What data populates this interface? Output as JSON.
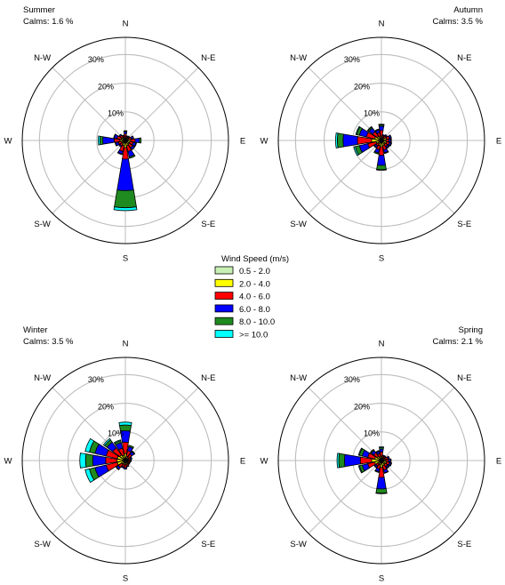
{
  "chart_data": {
    "type": "windrose",
    "legend": {
      "title": "Wind Speed (m/s)",
      "placement": "center",
      "items": [
        {
          "label": "0.5 - 2.0",
          "color": "#c8f0b4"
        },
        {
          "label": "2.0 - 4.0",
          "color": "#ffff00"
        },
        {
          "label": "4.0 - 6.0",
          "color": "#ff0000"
        },
        {
          "label": "6.0 - 8.0",
          "color": "#0000ff"
        },
        {
          "label": "8.0 - 10.0",
          "color": "#1f8a1f"
        },
        {
          "label": ">= 10.0",
          "color": "#00ffff"
        }
      ]
    },
    "directions": [
      "N",
      "NNE",
      "NE",
      "ENE",
      "E",
      "ESE",
      "SE",
      "SSE",
      "S",
      "SSW",
      "SW",
      "WSW",
      "W",
      "WNW",
      "NW",
      "NNW"
    ],
    "radial_ticks": [
      10,
      20,
      30
    ],
    "radial_tick_suffix": "%",
    "rmax": 36,
    "compass_labels": [
      "N",
      "N-E",
      "E",
      "S-E",
      "S",
      "S-W",
      "W",
      "N-W"
    ],
    "panels": [
      {
        "season": "Summer",
        "calms": "Calms: 1.6 %",
        "series": [
          {
            "name": "0.5 - 2.0",
            "values": [
              0.3,
              0.3,
              0.3,
              0.3,
              0.4,
              0.4,
              0.4,
              0.4,
              0.5,
              0.4,
              0.3,
              0.3,
              0.4,
              0.3,
              0.3,
              0.3
            ]
          },
          {
            "name": "2.0 - 4.0",
            "values": [
              1.0,
              0.6,
              0.8,
              0.9,
              1.5,
              1.2,
              1.2,
              1.5,
              2.0,
              1.5,
              1.0,
              1.0,
              1.5,
              1.2,
              1.0,
              0.8
            ]
          },
          {
            "name": "4.0 - 6.0",
            "values": [
              1.0,
              0.5,
              0.5,
              1.0,
              1.5,
              1.2,
              1.5,
              2.0,
              4.0,
              2.0,
              1.0,
              1.2,
              2.0,
              1.5,
              1.0,
              0.6
            ]
          },
          {
            "name": "6.0 - 8.0",
            "values": [
              0.8,
              0.3,
              0.3,
              0.7,
              1.5,
              1.0,
              0.8,
              2.0,
              11.0,
              1.0,
              0.5,
              1.0,
              4.0,
              1.0,
              0.4,
              0.3
            ]
          },
          {
            "name": "8.0 - 10.0",
            "values": [
              0.3,
              0.0,
              0.0,
              0.1,
              0.6,
              0.2,
              0.1,
              0.5,
              6.0,
              0.2,
              0.0,
              0.2,
              1.0,
              0.2,
              0.0,
              0.0
            ]
          },
          {
            "name": ">= 10.0",
            "values": [
              0.0,
              0.0,
              0.0,
              0.0,
              0.0,
              0.0,
              0.0,
              0.0,
              1.0,
              0.0,
              0.0,
              0.0,
              0.6,
              0.0,
              0.0,
              0.0
            ]
          }
        ]
      },
      {
        "season": "Autumn",
        "calms": "Calms: 3.5 %",
        "series": [
          {
            "name": "0.5 - 2.0",
            "values": [
              0.3,
              0.3,
              0.3,
              0.4,
              0.4,
              0.4,
              0.4,
              0.4,
              0.4,
              0.3,
              0.3,
              0.4,
              0.4,
              0.4,
              0.3,
              0.3
            ]
          },
          {
            "name": "2.0 - 4.0",
            "values": [
              1.2,
              0.8,
              1.0,
              1.5,
              1.2,
              1.5,
              1.2,
              1.5,
              1.8,
              1.5,
              1.0,
              1.5,
              3.0,
              2.0,
              1.5,
              1.0
            ]
          },
          {
            "name": "4.0 - 6.0",
            "values": [
              2.0,
              0.6,
              0.8,
              1.0,
              1.0,
              1.0,
              1.0,
              1.5,
              3.0,
              1.5,
              1.0,
              3.0,
              5.0,
              3.0,
              2.0,
              1.5
            ]
          },
          {
            "name": "6.0 - 8.0",
            "values": [
              1.5,
              0.4,
              0.4,
              0.6,
              0.7,
              0.6,
              0.6,
              1.0,
              3.5,
              1.2,
              0.7,
              3.0,
              5.0,
              2.5,
              1.5,
              1.0
            ]
          },
          {
            "name": "8.0 - 10.0",
            "values": [
              0.5,
              0.0,
              0.0,
              0.1,
              0.2,
              0.2,
              0.2,
              0.3,
              1.5,
              0.4,
              0.2,
              1.5,
              2.0,
              1.0,
              0.5,
              0.3
            ]
          },
          {
            "name": ">= 10.0",
            "values": [
              0.2,
              0.0,
              0.0,
              0.0,
              0.0,
              0.0,
              0.0,
              0.0,
              0.2,
              0.0,
              0.0,
              0.5,
              0.6,
              0.3,
              0.2,
              0.0
            ]
          }
        ]
      },
      {
        "season": "Winter",
        "calms": "Calms: 3.5 %",
        "series": [
          {
            "name": "0.5 - 2.0",
            "values": [
              0.4,
              0.3,
              0.3,
              0.3,
              0.3,
              0.3,
              0.3,
              0.3,
              0.3,
              0.3,
              0.3,
              0.4,
              0.4,
              0.4,
              0.4,
              0.4
            ]
          },
          {
            "name": "2.0 - 4.0",
            "values": [
              2.0,
              1.2,
              1.0,
              0.8,
              0.8,
              0.8,
              0.8,
              1.0,
              1.2,
              1.0,
              1.2,
              2.5,
              2.5,
              2.5,
              2.0,
              1.5
            ]
          },
          {
            "name": "4.0 - 6.0",
            "values": [
              4.0,
              2.0,
              1.5,
              0.8,
              0.7,
              0.5,
              0.5,
              0.7,
              1.0,
              1.0,
              1.5,
              4.0,
              4.0,
              4.0,
              3.0,
              2.5
            ]
          },
          {
            "name": "6.0 - 8.0",
            "values": [
              4.0,
              1.5,
              1.0,
              0.5,
              0.3,
              0.2,
              0.2,
              0.3,
              0.5,
              0.4,
              0.8,
              4.0,
              4.5,
              4.0,
              2.5,
              2.0
            ]
          },
          {
            "name": "8.0 - 10.0",
            "values": [
              2.0,
              0.5,
              0.3,
              0.0,
              0.0,
              0.0,
              0.0,
              0.0,
              0.0,
              0.0,
              0.2,
              2.0,
              2.5,
              2.0,
              1.0,
              0.7
            ]
          },
          {
            "name": ">= 10.0",
            "values": [
              1.0,
              0.0,
              0.0,
              0.0,
              0.0,
              0.0,
              0.0,
              0.0,
              0.0,
              0.0,
              0.0,
              1.5,
              2.0,
              1.5,
              0.5,
              0.3
            ]
          }
        ]
      },
      {
        "season": "Spring",
        "calms": "Calms: 2.1 %",
        "series": [
          {
            "name": "0.5 - 2.0",
            "values": [
              0.3,
              0.3,
              0.3,
              0.3,
              0.3,
              0.4,
              0.4,
              0.4,
              0.4,
              0.3,
              0.3,
              0.4,
              0.4,
              0.4,
              0.3,
              0.3
            ]
          },
          {
            "name": "2.0 - 4.0",
            "values": [
              1.2,
              0.8,
              0.8,
              1.0,
              1.2,
              1.5,
              1.2,
              1.5,
              2.0,
              1.2,
              1.0,
              2.0,
              3.0,
              2.0,
              1.5,
              1.0
            ]
          },
          {
            "name": "4.0 - 6.0",
            "values": [
              1.5,
              0.6,
              0.6,
              1.0,
              1.0,
              1.0,
              1.0,
              1.5,
              3.5,
              1.5,
              1.0,
              2.5,
              4.0,
              2.5,
              1.5,
              1.2
            ]
          },
          {
            "name": "6.0 - 8.0",
            "values": [
              1.0,
              0.3,
              0.3,
              0.5,
              0.7,
              0.6,
              0.6,
              1.0,
              4.0,
              1.0,
              0.6,
              2.0,
              5.5,
              2.0,
              1.0,
              0.8
            ]
          },
          {
            "name": "8.0 - 10.0",
            "values": [
              0.5,
              0.0,
              0.0,
              0.1,
              0.2,
              0.2,
              0.2,
              0.2,
              1.5,
              0.3,
              0.2,
              1.0,
              2.0,
              1.0,
              0.4,
              0.3
            ]
          },
          {
            "name": ">= 10.0",
            "values": [
              0.3,
              0.0,
              0.0,
              0.0,
              0.0,
              0.0,
              0.0,
              0.0,
              0.2,
              0.0,
              0.0,
              0.3,
              0.6,
              0.3,
              0.1,
              0.0
            ]
          }
        ]
      }
    ]
  }
}
